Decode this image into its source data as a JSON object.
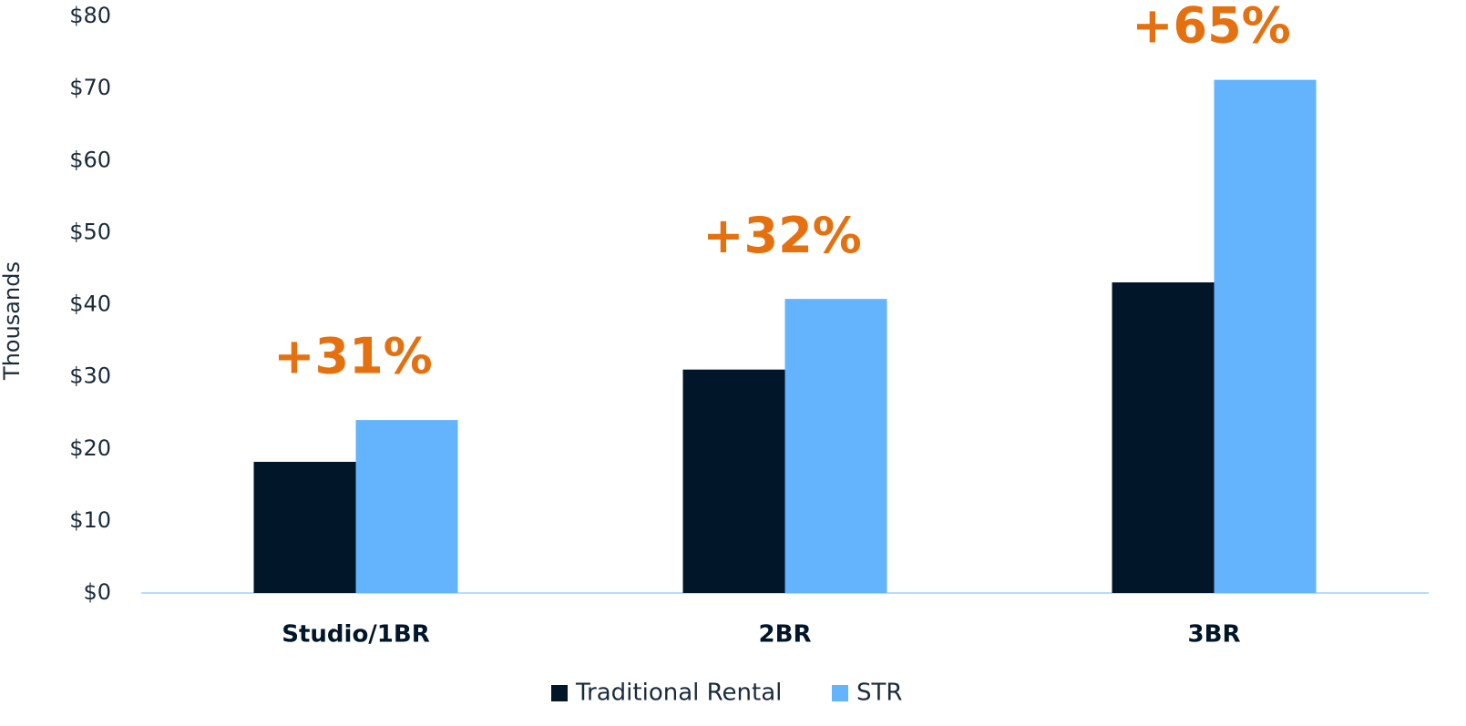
{
  "chart_data": {
    "type": "bar",
    "ylabel": "Thousands",
    "categories": [
      "Studio/1BR",
      "2BR",
      "3BR"
    ],
    "series": [
      {
        "name": "Traditional Rental",
        "color": "#021629",
        "values": [
          18.2,
          31.0,
          43.1
        ]
      },
      {
        "name": "STR",
        "color": "#63b3fd",
        "values": [
          24.0,
          40.8,
          71.2
        ]
      }
    ],
    "annotations": [
      "+31%",
      "+32%",
      "+65%"
    ],
    "annotation_color": "#e5700f",
    "ylim": [
      0,
      80
    ],
    "yticks": [
      {
        "value": 0,
        "label": "$0"
      },
      {
        "value": 10,
        "label": "$10"
      },
      {
        "value": 20,
        "label": "$20"
      },
      {
        "value": 30,
        "label": "$30"
      },
      {
        "value": 40,
        "label": "$40"
      },
      {
        "value": 50,
        "label": "$50"
      },
      {
        "value": 60,
        "label": "$60"
      },
      {
        "value": 70,
        "label": "$70"
      },
      {
        "value": 80,
        "label": "$80"
      }
    ],
    "grid": false,
    "legend": "bottom"
  }
}
